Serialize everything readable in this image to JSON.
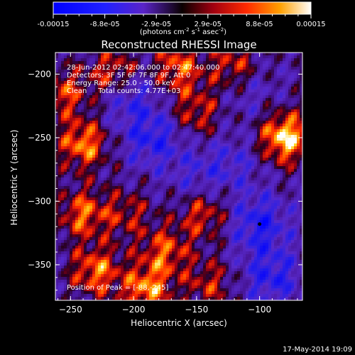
{
  "chart_data": {
    "type": "heatmap",
    "title": "Reconstructed RHESSI Image",
    "xlabel": "Heliocentric X (arcsec)",
    "ylabel": "Heliocentric Y (arcsec)",
    "xlim": [
      -262,
      -66
    ],
    "ylim": [
      -378,
      -183
    ],
    "xticks": [
      -250,
      -200,
      -150,
      -100
    ],
    "yticks": [
      -200,
      -250,
      -300,
      -350
    ],
    "colorbar": {
      "ticks": [
        "-0.00015",
        "-8.8e-05",
        "-2.9e-05",
        "2.9e-05",
        "8.8e-05",
        "0.00015"
      ],
      "label": "(photons cm",
      "label_exp1": "-2",
      "label_mid": " s",
      "label_exp2": "-1",
      "label_mid2": " asec",
      "label_exp3": "-2",
      "label_end": ")",
      "vmin": -0.00015,
      "vmax": 0.00015
    },
    "annotations": [
      "28-Jun-2012 02:42:06.000 to 02:47:40.000",
      "Detectors: 3F 5F 6F 7F 8F 9F, Att 0",
      "Energy Range: 25.0 - 50.0 keV",
      "Clean     Total counts: 4.77E+03"
    ],
    "peak_label": "Position of Peak = [-88,-245]",
    "peak": [
      -88,
      -245
    ],
    "hot_regions": [
      {
        "x": -80,
        "y": -250,
        "level": 1.0
      },
      {
        "x": -240,
        "y": -255,
        "level": 0.75
      },
      {
        "x": -215,
        "y": -200,
        "level": 0.7
      },
      {
        "x": -165,
        "y": -195,
        "level": 0.65
      },
      {
        "x": -120,
        "y": -195,
        "level": 0.6
      },
      {
        "x": -240,
        "y": -310,
        "level": 0.65
      },
      {
        "x": -230,
        "y": -355,
        "level": 0.7
      },
      {
        "x": -190,
        "y": -370,
        "level": 0.75
      },
      {
        "x": -175,
        "y": -340,
        "level": 0.6
      },
      {
        "x": -145,
        "y": -310,
        "level": 0.55
      },
      {
        "x": -150,
        "y": -230,
        "level": 0.5
      },
      {
        "x": -255,
        "y": -215,
        "level": 0.55
      },
      {
        "x": -140,
        "y": -365,
        "level": 0.45
      },
      {
        "x": -205,
        "y": -310,
        "level": 0.4
      }
    ],
    "cold_regions": [
      {
        "x": -205,
        "y": -215,
        "level": -0.5
      },
      {
        "x": -185,
        "y": -250,
        "level": -0.55
      },
      {
        "x": -100,
        "y": -318,
        "level": -0.6
      },
      {
        "x": -90,
        "y": -360,
        "level": -0.55
      },
      {
        "x": -150,
        "y": -280,
        "level": -0.3
      },
      {
        "x": -110,
        "y": -210,
        "level": -0.3
      },
      {
        "x": -120,
        "y": -270,
        "level": -0.3
      }
    ]
  },
  "footer_date": "17-May-2014 19:09"
}
